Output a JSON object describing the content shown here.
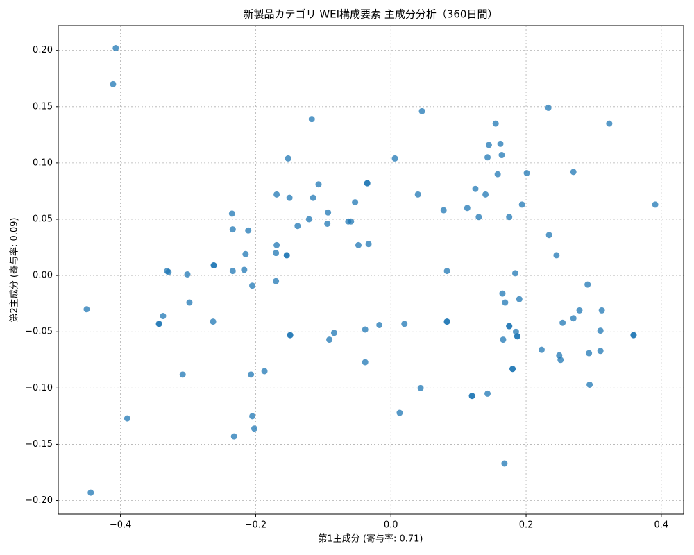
{
  "chart_data": {
    "type": "scatter",
    "title": "新製品カテゴリ WEI構成要素 主成分分析（360日間）",
    "x_label": "第1主成分 (寄与率: 0.71)",
    "y_label": "第2主成分 (寄与率: 0.09)",
    "color": "#1f77b4",
    "grid": true,
    "xlim": [
      -0.492,
      0.433
    ],
    "ylim": [
      -0.212,
      0.222
    ],
    "xticks": [
      {
        "value": -0.4,
        "label": "−0.4"
      },
      {
        "value": -0.2,
        "label": "−0.2"
      },
      {
        "value": 0,
        "label": "0.0"
      },
      {
        "value": 0.2,
        "label": "0.2"
      },
      {
        "value": 0.4,
        "label": "0.4"
      }
    ],
    "yticks": [
      {
        "value": -0.2,
        "label": "−0.20"
      },
      {
        "value": -0.15,
        "label": "−0.15"
      },
      {
        "value": -0.1,
        "label": "−0.10"
      },
      {
        "value": -0.05,
        "label": "−0.05"
      },
      {
        "value": 0,
        "label": "0.00"
      },
      {
        "value": 0.05,
        "label": "0.05"
      },
      {
        "value": 0.1,
        "label": "0.10"
      },
      {
        "value": 0.15,
        "label": "0.15"
      },
      {
        "value": 0.2,
        "label": "0.20"
      }
    ],
    "x": [
      -0.407,
      -0.411,
      -0.45,
      -0.444,
      -0.39,
      -0.343,
      -0.337,
      -0.331,
      -0.329,
      -0.308,
      -0.301,
      -0.298,
      -0.262,
      -0.263,
      -0.235,
      -0.234,
      -0.234,
      -0.232,
      -0.217,
      -0.215,
      -0.211,
      -0.207,
      -0.205,
      -0.205,
      -0.202,
      -0.187,
      -0.169,
      -0.169,
      -0.17,
      -0.17,
      -0.154,
      -0.152,
      -0.15,
      -0.149,
      -0.138,
      -0.121,
      -0.117,
      -0.115,
      -0.107,
      -0.094,
      -0.093,
      -0.091,
      -0.084,
      -0.063,
      -0.059,
      -0.053,
      -0.048,
      -0.038,
      -0.038,
      -0.035,
      -0.033,
      -0.017,
      0.006,
      0.013,
      0.02,
      0.04,
      0.044,
      0.046,
      0.078,
      0.083,
      0.083,
      0.113,
      0.12,
      0.125,
      0.13,
      0.14,
      0.143,
      0.143,
      0.145,
      0.155,
      0.158,
      0.162,
      0.164,
      0.165,
      0.166,
      0.168,
      0.169,
      0.175,
      0.175,
      0.18,
      0.184,
      0.185,
      0.187,
      0.19,
      0.194,
      0.201,
      0.223,
      0.233,
      0.234,
      0.245,
      0.249,
      0.251,
      0.254,
      0.27,
      0.27,
      0.279,
      0.291,
      0.293,
      0.294,
      0.31,
      0.31,
      0.312,
      0.323,
      0.359,
      0.391,
      -0.343,
      -0.262,
      -0.154,
      -0.149,
      -0.035,
      0.083,
      0.12,
      0.175,
      0.18,
      0.187,
      0.359
    ],
    "values": [
      0.202,
      0.17,
      -0.03,
      -0.193,
      -0.127,
      -0.043,
      -0.036,
      0.004,
      0.003,
      -0.088,
      0.001,
      -0.024,
      0.009,
      -0.041,
      0.055,
      0.041,
      0.004,
      -0.143,
      0.005,
      0.019,
      0.04,
      -0.088,
      -0.125,
      -0.009,
      -0.136,
      -0.085,
      0.072,
      0.027,
      0.02,
      -0.005,
      0.018,
      0.104,
      0.069,
      -0.053,
      0.044,
      0.05,
      0.139,
      0.069,
      0.081,
      0.046,
      0.056,
      -0.057,
      -0.051,
      0.048,
      0.048,
      0.065,
      0.027,
      -0.048,
      -0.077,
      0.082,
      0.028,
      -0.044,
      0.104,
      -0.122,
      -0.043,
      0.072,
      -0.1,
      0.146,
      0.058,
      0.004,
      -0.041,
      0.06,
      -0.107,
      0.077,
      0.052,
      0.072,
      -0.105,
      0.105,
      0.116,
      0.135,
      0.09,
      0.117,
      0.107,
      -0.016,
      -0.057,
      -0.167,
      -0.024,
      0.052,
      -0.045,
      -0.083,
      0.002,
      -0.05,
      -0.054,
      -0.021,
      0.063,
      0.091,
      -0.066,
      0.149,
      0.036,
      0.018,
      -0.071,
      -0.075,
      -0.042,
      -0.038,
      0.092,
      -0.031,
      -0.008,
      -0.069,
      -0.097,
      -0.049,
      -0.067,
      -0.031,
      0.135,
      -0.053,
      0.063,
      -0.043,
      0.009,
      0.018,
      -0.053,
      0.082,
      -0.041,
      -0.107,
      -0.045,
      -0.083,
      -0.054,
      -0.053
    ]
  }
}
